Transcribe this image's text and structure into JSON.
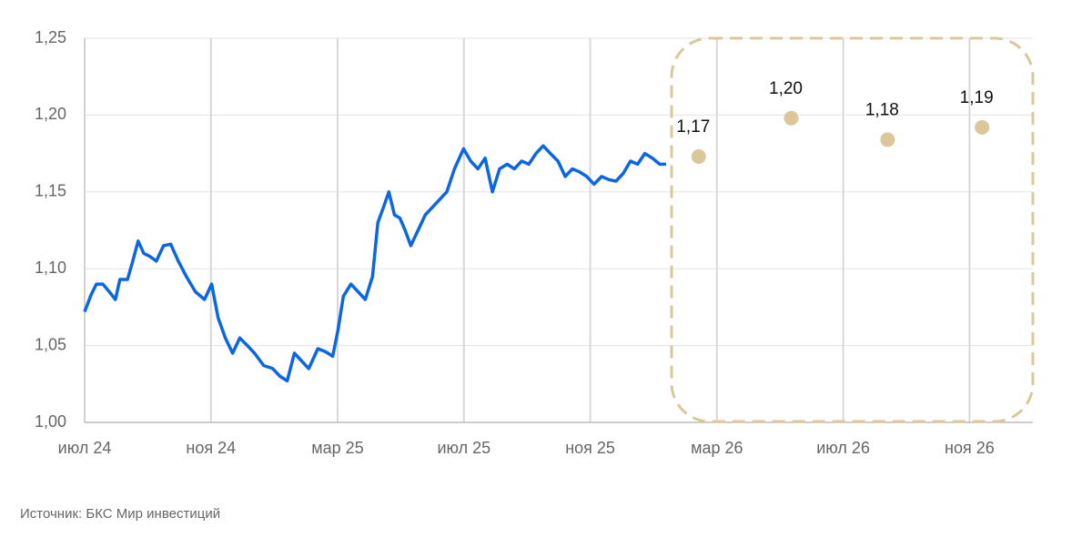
{
  "chart_data": {
    "type": "line",
    "xlim": [
      2024.5,
      2027.0
    ],
    "xticks": [
      {
        "value": 2024.5,
        "label": "июл 24"
      },
      {
        "value": 2024.833,
        "label": "ноя 24"
      },
      {
        "value": 2025.167,
        "label": "мар 25"
      },
      {
        "value": 2025.5,
        "label": "июл 25"
      },
      {
        "value": 2025.833,
        "label": "ноя 25"
      },
      {
        "value": 2026.167,
        "label": "мар 26"
      },
      {
        "value": 2026.5,
        "label": "июл 26"
      },
      {
        "value": 2026.833,
        "label": "ноя 26"
      }
    ],
    "ylim": [
      1.0,
      1.25
    ],
    "yticks": [
      {
        "value": 1.0,
        "label": "1,00"
      },
      {
        "value": 1.05,
        "label": "1,05"
      },
      {
        "value": 1.1,
        "label": "1,10"
      },
      {
        "value": 1.15,
        "label": "1,15"
      },
      {
        "value": 1.2,
        "label": "1,20"
      },
      {
        "value": 1.25,
        "label": "1,25"
      }
    ],
    "grid": true,
    "series": [
      {
        "color": "#0a66e4",
        "mode": "line",
        "x": [
          2024.5,
          2024.517,
          2024.531,
          2024.548,
          2024.565,
          2024.581,
          2024.593,
          2024.613,
          2024.627,
          2024.641,
          2024.656,
          2024.672,
          2024.689,
          2024.708,
          2024.727,
          2024.747,
          2024.768,
          2024.792,
          2024.816,
          2024.835,
          2024.852,
          2024.871,
          2024.89,
          2024.909,
          2024.929,
          2024.948,
          2024.972,
          2024.996,
          2025.015,
          2025.034,
          2025.053,
          2025.072,
          2025.091,
          2025.115,
          2025.135,
          2025.154,
          2025.168,
          2025.182,
          2025.202,
          2025.221,
          2025.24,
          2025.259,
          2025.273,
          2025.288,
          2025.302,
          2025.317,
          2025.331,
          2025.345,
          2025.36,
          2025.379,
          2025.398,
          2025.417,
          2025.436,
          2025.455,
          2025.475,
          2025.499,
          2025.518,
          2025.537,
          2025.556,
          2025.575,
          2025.594,
          2025.614,
          2025.633,
          2025.652,
          2025.671,
          2025.69,
          2025.709,
          2025.728,
          2025.748,
          2025.767,
          2025.786,
          2025.805,
          2025.824,
          2025.843,
          2025.863,
          2025.882,
          2025.901,
          2025.92,
          2025.939,
          2025.958,
          2025.977,
          2025.997,
          2026.016,
          2026.033
        ],
        "values": [
          1.072,
          1.083,
          1.09,
          1.09,
          1.085,
          1.08,
          1.093,
          1.093,
          1.105,
          1.118,
          1.11,
          1.108,
          1.105,
          1.115,
          1.116,
          1.105,
          1.095,
          1.085,
          1.08,
          1.09,
          1.068,
          1.055,
          1.045,
          1.055,
          1.05,
          1.045,
          1.037,
          1.035,
          1.03,
          1.027,
          1.045,
          1.04,
          1.035,
          1.048,
          1.046,
          1.043,
          1.06,
          1.082,
          1.09,
          1.085,
          1.08,
          1.095,
          1.13,
          1.14,
          1.15,
          1.135,
          1.133,
          1.125,
          1.115,
          1.125,
          1.135,
          1.14,
          1.145,
          1.15,
          1.165,
          1.178,
          1.17,
          1.165,
          1.172,
          1.15,
          1.165,
          1.168,
          1.165,
          1.17,
          1.168,
          1.175,
          1.18,
          1.175,
          1.17,
          1.16,
          1.165,
          1.163,
          1.16,
          1.155,
          1.16,
          1.158,
          1.157,
          1.162,
          1.17,
          1.168,
          1.175,
          1.172,
          1.168,
          1.168
        ]
      },
      {
        "color": "#dcc79a",
        "mode": "markers",
        "x": [
          2026.119,
          2026.363,
          2026.617,
          2026.866
        ],
        "values": [
          1.173,
          1.198,
          1.184,
          1.192
        ],
        "value_labels": [
          "1,17",
          "1,20",
          "1,18",
          "1,19"
        ]
      }
    ],
    "source": "Источник: БКС Мир инвестиций"
  }
}
